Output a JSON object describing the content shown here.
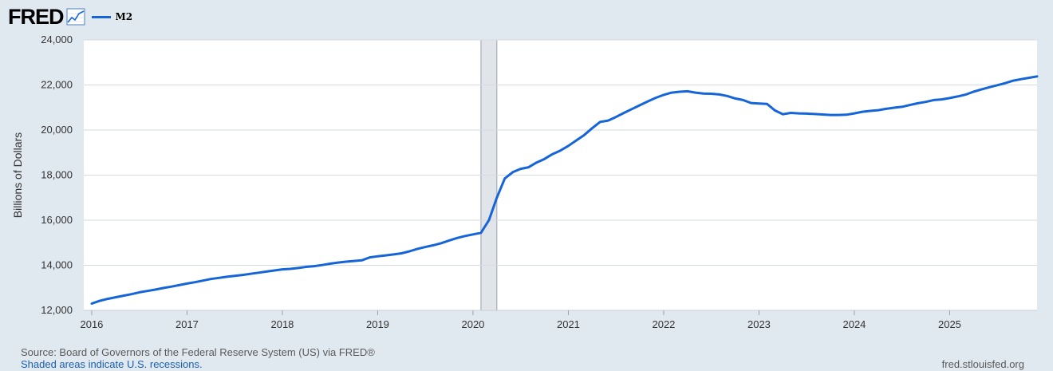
{
  "header": {
    "logo_text": "FRED",
    "logo_icon": "chart-line-icon"
  },
  "chart_data": {
    "type": "line",
    "series": [
      {
        "name": "M2",
        "color": "#1565d8",
        "points": [
          [
            "2016-01",
            12300
          ],
          [
            "2016-02",
            12420
          ],
          [
            "2016-03",
            12510
          ],
          [
            "2016-04",
            12580
          ],
          [
            "2016-05",
            12650
          ],
          [
            "2016-06",
            12720
          ],
          [
            "2016-07",
            12800
          ],
          [
            "2016-08",
            12860
          ],
          [
            "2016-09",
            12920
          ],
          [
            "2016-10",
            12990
          ],
          [
            "2016-11",
            13050
          ],
          [
            "2016-12",
            13120
          ],
          [
            "2017-01",
            13190
          ],
          [
            "2017-02",
            13250
          ],
          [
            "2017-03",
            13320
          ],
          [
            "2017-04",
            13390
          ],
          [
            "2017-05",
            13440
          ],
          [
            "2017-06",
            13490
          ],
          [
            "2017-07",
            13530
          ],
          [
            "2017-08",
            13570
          ],
          [
            "2017-09",
            13620
          ],
          [
            "2017-10",
            13670
          ],
          [
            "2017-11",
            13720
          ],
          [
            "2017-12",
            13770
          ],
          [
            "2018-01",
            13820
          ],
          [
            "2018-02",
            13840
          ],
          [
            "2018-03",
            13880
          ],
          [
            "2018-04",
            13930
          ],
          [
            "2018-05",
            13960
          ],
          [
            "2018-06",
            14010
          ],
          [
            "2018-07",
            14070
          ],
          [
            "2018-08",
            14120
          ],
          [
            "2018-09",
            14160
          ],
          [
            "2018-10",
            14190
          ],
          [
            "2018-11",
            14220
          ],
          [
            "2018-12",
            14350
          ],
          [
            "2019-01",
            14400
          ],
          [
            "2019-02",
            14440
          ],
          [
            "2019-03",
            14480
          ],
          [
            "2019-04",
            14530
          ],
          [
            "2019-05",
            14620
          ],
          [
            "2019-06",
            14730
          ],
          [
            "2019-07",
            14810
          ],
          [
            "2019-08",
            14890
          ],
          [
            "2019-09",
            14980
          ],
          [
            "2019-10",
            15100
          ],
          [
            "2019-11",
            15210
          ],
          [
            "2019-12",
            15300
          ],
          [
            "2020-01",
            15370
          ],
          [
            "2020-02",
            15440
          ],
          [
            "2020-03",
            16000
          ],
          [
            "2020-04",
            17000
          ],
          [
            "2020-05",
            17850
          ],
          [
            "2020-06",
            18130
          ],
          [
            "2020-07",
            18280
          ],
          [
            "2020-08",
            18350
          ],
          [
            "2020-09",
            18560
          ],
          [
            "2020-10",
            18720
          ],
          [
            "2020-11",
            18930
          ],
          [
            "2020-12",
            19090
          ],
          [
            "2021-01",
            19300
          ],
          [
            "2021-02",
            19540
          ],
          [
            "2021-03",
            19780
          ],
          [
            "2021-04",
            20080
          ],
          [
            "2021-05",
            20360
          ],
          [
            "2021-06",
            20420
          ],
          [
            "2021-07",
            20580
          ],
          [
            "2021-08",
            20760
          ],
          [
            "2021-09",
            20930
          ],
          [
            "2021-10",
            21100
          ],
          [
            "2021-11",
            21270
          ],
          [
            "2021-12",
            21430
          ],
          [
            "2022-01",
            21560
          ],
          [
            "2022-02",
            21660
          ],
          [
            "2022-03",
            21700
          ],
          [
            "2022-04",
            21720
          ],
          [
            "2022-05",
            21660
          ],
          [
            "2022-06",
            21620
          ],
          [
            "2022-07",
            21610
          ],
          [
            "2022-08",
            21580
          ],
          [
            "2022-09",
            21510
          ],
          [
            "2022-10",
            21400
          ],
          [
            "2022-11",
            21330
          ],
          [
            "2022-12",
            21200
          ],
          [
            "2023-01",
            21180
          ],
          [
            "2023-02",
            21160
          ],
          [
            "2023-03",
            20870
          ],
          [
            "2023-04",
            20700
          ],
          [
            "2023-05",
            20760
          ],
          [
            "2023-06",
            20740
          ],
          [
            "2023-07",
            20730
          ],
          [
            "2023-08",
            20710
          ],
          [
            "2023-09",
            20690
          ],
          [
            "2023-10",
            20670
          ],
          [
            "2023-11",
            20670
          ],
          [
            "2023-12",
            20680
          ],
          [
            "2024-01",
            20740
          ],
          [
            "2024-02",
            20810
          ],
          [
            "2024-03",
            20850
          ],
          [
            "2024-04",
            20880
          ],
          [
            "2024-05",
            20940
          ],
          [
            "2024-06",
            20990
          ],
          [
            "2024-07",
            21030
          ],
          [
            "2024-08",
            21110
          ],
          [
            "2024-09",
            21190
          ],
          [
            "2024-10",
            21250
          ],
          [
            "2024-11",
            21330
          ],
          [
            "2024-12",
            21360
          ],
          [
            "2025-01",
            21420
          ],
          [
            "2025-02",
            21490
          ],
          [
            "2025-03",
            21570
          ],
          [
            "2025-04",
            21700
          ],
          [
            "2025-05",
            21800
          ],
          [
            "2025-06",
            21900
          ],
          [
            "2025-07",
            21990
          ],
          [
            "2025-08",
            22080
          ],
          [
            "2025-09",
            22190
          ],
          [
            "2025-10",
            22260
          ],
          [
            "2025-11",
            22320
          ],
          [
            "2025-12",
            22380
          ]
        ]
      }
    ],
    "recessions": [
      [
        "2020-02",
        "2020-04"
      ]
    ],
    "xlim": [
      "2015-12",
      "2025-12"
    ],
    "ylim": [
      12000,
      24000
    ],
    "yticks": [
      12000,
      14000,
      16000,
      18000,
      20000,
      22000,
      24000
    ],
    "ytick_labels": [
      "12,000",
      "14,000",
      "16,000",
      "18,000",
      "20,000",
      "22,000",
      "24,000"
    ],
    "xticks": [
      "2016-01",
      "2017-01",
      "2018-01",
      "2019-01",
      "2020-01",
      "2021-01",
      "2022-01",
      "2023-01",
      "2024-01",
      "2025-01"
    ],
    "xtick_labels": [
      "2016",
      "2017",
      "2018",
      "2019",
      "2020",
      "2021",
      "2022",
      "2023",
      "2024",
      "2025"
    ],
    "ylabel": "Billions of Dollars",
    "xlabel": "",
    "legend_position": "top-left",
    "grid": true,
    "recession_color": "#e1e5ea",
    "line_color": "#1565d8",
    "background": "#e1e9f0",
    "plot_background": "#ffffff"
  },
  "footer": {
    "source": "Source: Board of Governors of the Federal Reserve System (US) via FRED®",
    "recession_note": "Shaded areas indicate U.S. recessions.",
    "site_url": "fred.stlouisfed.org"
  }
}
